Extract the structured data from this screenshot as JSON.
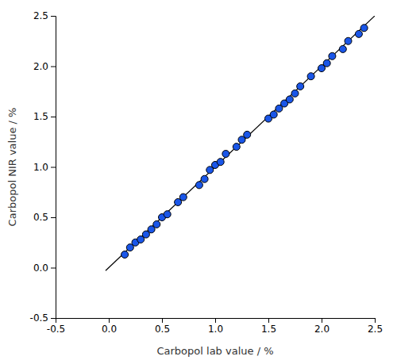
{
  "chart_data": {
    "type": "scatter",
    "xlabel": "Carbopol lab value / %",
    "ylabel": "Carbopol NIR value / %",
    "x": [
      0.15,
      0.2,
      0.25,
      0.3,
      0.35,
      0.4,
      0.45,
      0.5,
      0.55,
      0.65,
      0.7,
      0.85,
      0.9,
      0.95,
      1.0,
      1.05,
      1.1,
      1.2,
      1.25,
      1.3,
      1.5,
      1.55,
      1.6,
      1.65,
      1.7,
      1.75,
      1.8,
      1.9,
      2.0,
      2.05,
      2.1,
      2.2,
      2.25,
      2.35,
      2.4
    ],
    "values": [
      0.13,
      0.2,
      0.25,
      0.28,
      0.33,
      0.38,
      0.43,
      0.5,
      0.53,
      0.65,
      0.7,
      0.82,
      0.88,
      0.97,
      1.02,
      1.05,
      1.13,
      1.2,
      1.27,
      1.32,
      1.48,
      1.52,
      1.58,
      1.63,
      1.67,
      1.73,
      1.8,
      1.9,
      1.98,
      2.03,
      2.1,
      2.17,
      2.25,
      2.32,
      2.38
    ],
    "color": "#1a56e8",
    "reference_line": {
      "x": [
        -0.03,
        2.5
      ],
      "y": [
        -0.03,
        2.5
      ],
      "color": "#000000"
    },
    "xlim": [
      -0.5,
      2.5
    ],
    "ylim": [
      -0.5,
      2.5
    ],
    "xticks": [
      -0.5,
      {
        "value": 0,
        "label": "0.0"
      },
      0.5,
      {
        "value": 1,
        "label": "1.0"
      },
      1.5,
      {
        "value": 2,
        "label": "2.0"
      },
      2.5
    ],
    "yticks": [
      -0.5,
      {
        "value": 0,
        "label": "0.0"
      },
      0.5,
      {
        "value": 1,
        "label": "1.0"
      },
      1.5,
      {
        "value": 2,
        "label": "2.0"
      },
      2.5
    ],
    "grid": false
  }
}
